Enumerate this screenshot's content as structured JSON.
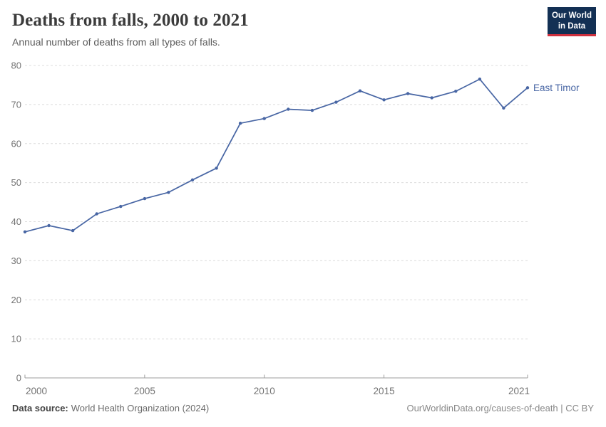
{
  "header": {
    "title": "Deaths from falls, 2000 to 2021",
    "subtitle": "Annual number of deaths from all types of falls.",
    "logo": {
      "line1": "Our World",
      "line2": "in Data",
      "bg_color": "#133054",
      "accent_color": "#cf303e"
    }
  },
  "chart_data": {
    "type": "line",
    "title": "Deaths from falls, 2000 to 2021",
    "subtitle": "Annual number of deaths from all types of falls.",
    "x": [
      2000,
      2001,
      2002,
      2003,
      2004,
      2005,
      2006,
      2007,
      2008,
      2009,
      2010,
      2011,
      2012,
      2013,
      2014,
      2015,
      2016,
      2017,
      2018,
      2019,
      2020,
      2021
    ],
    "series": [
      {
        "name": "East Timor",
        "color": "#4866a4",
        "values": [
          37.4,
          39.0,
          37.7,
          42.0,
          43.9,
          45.9,
          47.5,
          50.7,
          53.7,
          65.2,
          66.4,
          68.8,
          68.5,
          70.6,
          73.5,
          71.2,
          72.8,
          71.7,
          73.4,
          76.5,
          69.1,
          74.3
        ]
      }
    ],
    "xlabel": "",
    "ylabel": "",
    "xlim": [
      2000,
      2021
    ],
    "ylim": [
      0,
      80
    ],
    "yticks": [
      0,
      10,
      20,
      30,
      40,
      50,
      60,
      70,
      80
    ],
    "xticks": [
      2000,
      2005,
      2010,
      2015,
      2021
    ],
    "grid": "horizontal-dashed",
    "legend_position": "end-of-line-label",
    "grid_color": "#dcdcdc",
    "axis_color": "#9e9e9e",
    "tick_label_color": "#737373"
  },
  "footer": {
    "datasource_label": "Data source:",
    "datasource_value": "World Health Organization (2024)",
    "credit": "OurWorldinData.org/causes-of-death | CC BY"
  }
}
